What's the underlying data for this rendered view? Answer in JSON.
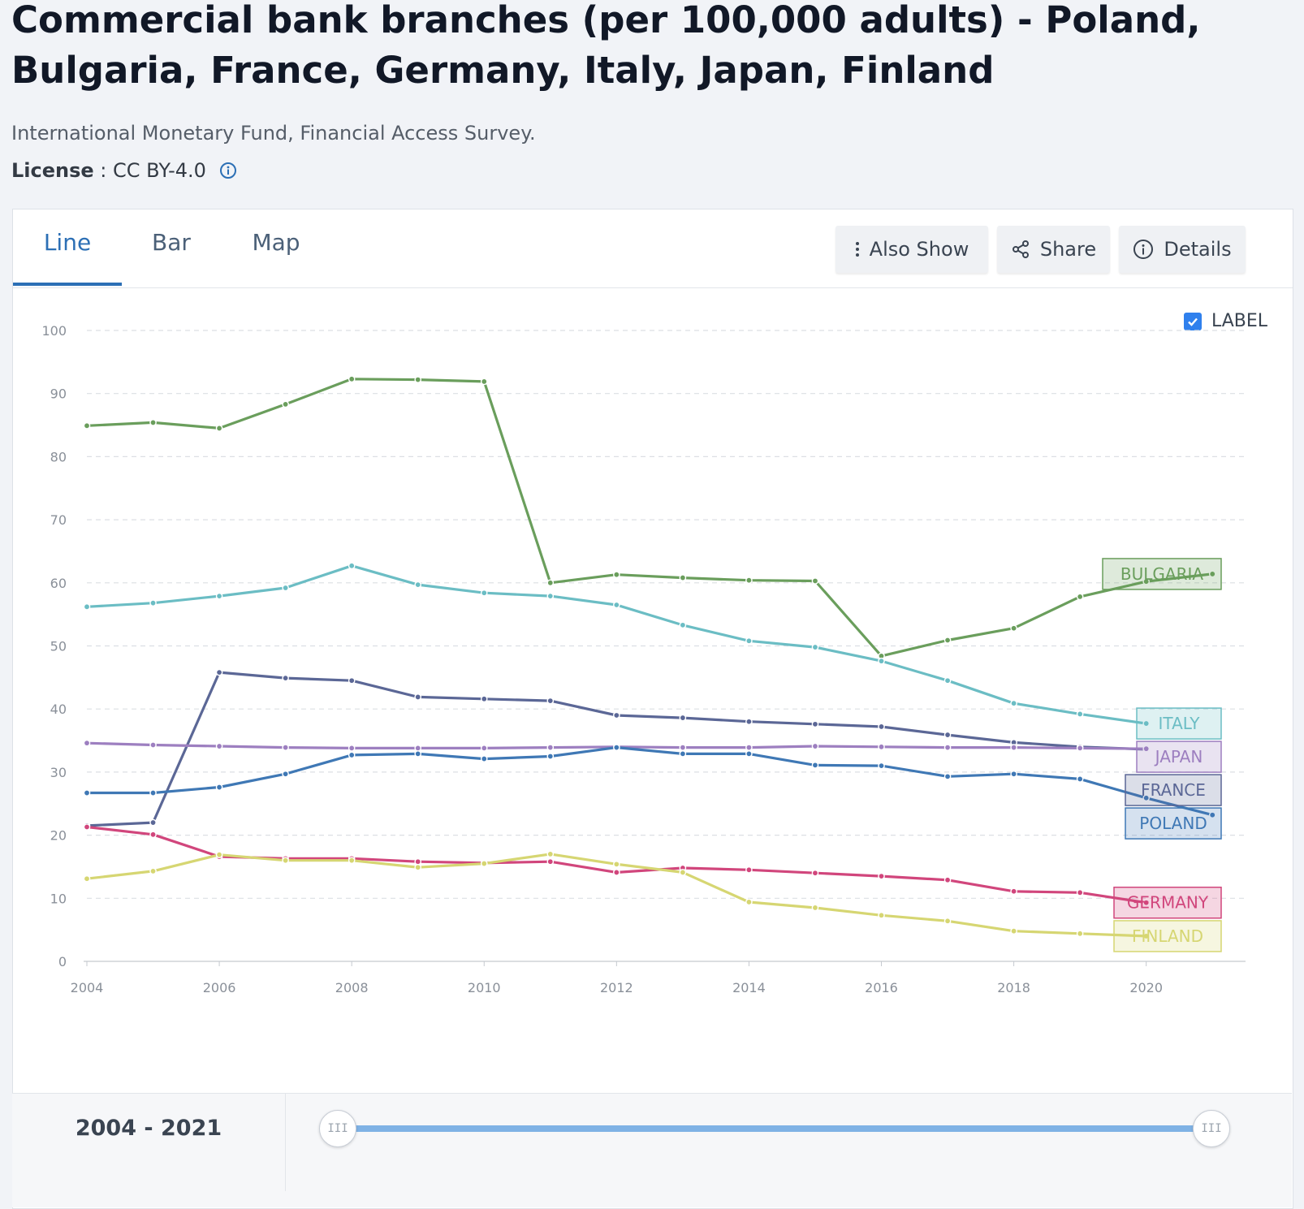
{
  "header": {
    "title": "Commercial bank branches (per 100,000 adults) - Poland, Bulgaria, France, Germany, Italy, Japan, Finland",
    "source": "International Monetary Fund, Financial Access Survey.",
    "license_label": "License",
    "license_sep": " : ",
    "license_value": "CC BY-4.0",
    "info_icon": "info-circle-icon"
  },
  "tabs": [
    {
      "label": "Line",
      "active": true
    },
    {
      "label": "Bar",
      "active": false
    },
    {
      "label": "Map",
      "active": false
    }
  ],
  "toolbar": {
    "also_show": {
      "label": "Also Show",
      "icon": "more-vertical-icon"
    },
    "share": {
      "label": "Share",
      "icon": "share-icon"
    },
    "details": {
      "label": "Details",
      "icon": "info-circle-icon"
    }
  },
  "label_toggle": {
    "label": "LABEL",
    "checked": true
  },
  "range": {
    "text": "2004 - 2021",
    "handle_glyph": "III"
  },
  "chart_data": {
    "type": "line",
    "x": [
      2004,
      2005,
      2006,
      2007,
      2008,
      2009,
      2010,
      2011,
      2012,
      2013,
      2014,
      2015,
      2016,
      2017,
      2018,
      2019,
      2020,
      2021
    ],
    "xticks": [
      2004,
      2006,
      2008,
      2010,
      2012,
      2014,
      2016,
      2018,
      2020
    ],
    "yticks": [
      0,
      10,
      20,
      30,
      40,
      50,
      60,
      70,
      80,
      90,
      100
    ],
    "ylim": [
      0,
      100
    ],
    "xlim": [
      2004,
      2021.5
    ],
    "grid": true,
    "series": [
      {
        "name": "BULGARIA",
        "color": "#6a9e5c",
        "values": [
          84.9,
          85.4,
          84.5,
          88.3,
          92.3,
          92.2,
          91.9,
          60.0,
          61.3,
          60.8,
          60.4,
          60.3,
          48.4,
          50.9,
          52.8,
          57.8,
          60.2,
          61.4
        ]
      },
      {
        "name": "ITALY",
        "color": "#6bbdc4",
        "values": [
          56.2,
          56.8,
          57.9,
          59.2,
          62.7,
          59.7,
          58.4,
          57.9,
          56.5,
          53.3,
          50.8,
          49.8,
          47.6,
          44.5,
          40.9,
          39.2,
          37.7,
          null
        ]
      },
      {
        "name": "FRANCE",
        "color": "#5b6796",
        "values": [
          21.5,
          22.0,
          45.8,
          44.9,
          44.5,
          41.9,
          41.6,
          41.3,
          39.0,
          38.6,
          38.0,
          37.6,
          37.2,
          35.9,
          34.7,
          34.0,
          33.6,
          null
        ]
      },
      {
        "name": "JAPAN",
        "color": "#9d7fc0",
        "values": [
          34.6,
          34.3,
          34.1,
          33.9,
          33.8,
          33.8,
          33.8,
          33.9,
          34.0,
          33.9,
          33.9,
          34.1,
          34.0,
          33.9,
          33.9,
          33.8,
          33.7,
          null
        ]
      },
      {
        "name": "POLAND",
        "color": "#3f78b5",
        "values": [
          26.7,
          26.7,
          27.6,
          29.7,
          32.7,
          32.9,
          32.1,
          32.5,
          33.9,
          32.9,
          32.9,
          31.1,
          31.0,
          29.3,
          29.7,
          28.9,
          25.9,
          23.2
        ]
      },
      {
        "name": "GERMANY",
        "color": "#d1467c",
        "values": [
          21.3,
          20.1,
          16.6,
          16.3,
          16.3,
          15.8,
          15.6,
          15.8,
          14.1,
          14.8,
          14.5,
          14.0,
          13.5,
          12.9,
          11.1,
          10.9,
          9.3,
          null
        ]
      },
      {
        "name": "FINLAND",
        "color": "#d6d672",
        "values": [
          13.1,
          14.3,
          16.9,
          16.0,
          16.0,
          14.9,
          15.5,
          17.0,
          15.4,
          14.1,
          9.4,
          8.5,
          7.3,
          6.4,
          4.8,
          4.4,
          4.0,
          null
        ]
      }
    ]
  }
}
